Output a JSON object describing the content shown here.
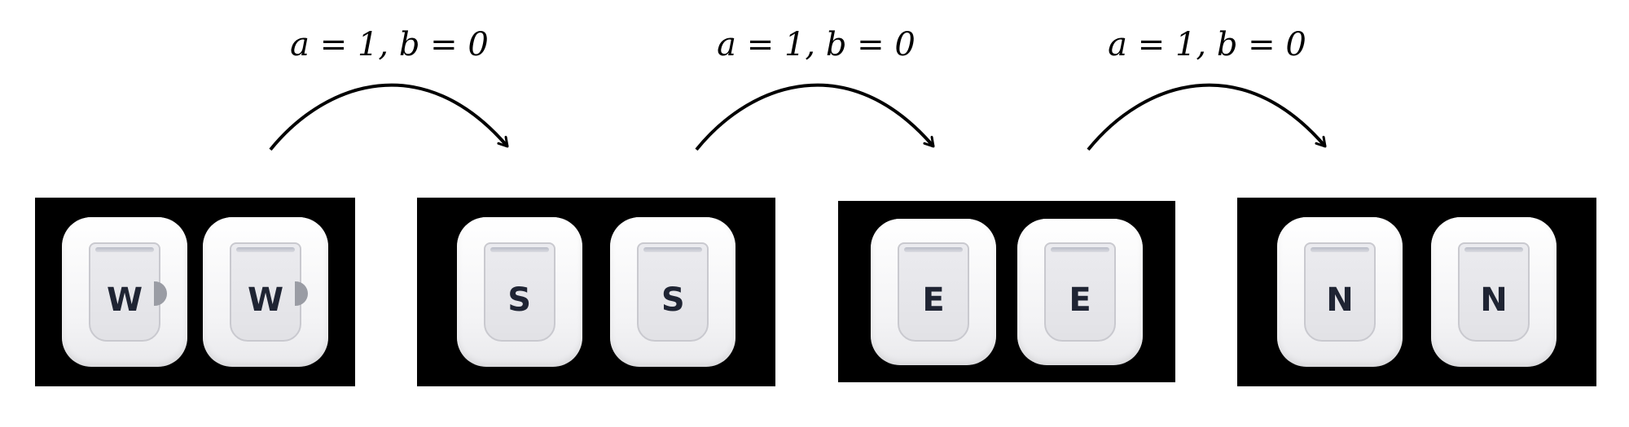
{
  "transitions": [
    {
      "label": "a = 1, b = 0"
    },
    {
      "label": "a = 1, b = 0"
    },
    {
      "label": "a = 1, b = 0"
    }
  ],
  "states": [
    {
      "tiles": [
        {
          "glyph": "W",
          "marker": "half-circle-marker"
        },
        {
          "glyph": "W",
          "marker": "half-circle-marker"
        }
      ]
    },
    {
      "tiles": [
        {
          "glyph": "S"
        },
        {
          "glyph": "S"
        }
      ]
    },
    {
      "tiles": [
        {
          "glyph": "E"
        },
        {
          "glyph": "E"
        }
      ]
    },
    {
      "tiles": [
        {
          "glyph": "N"
        },
        {
          "glyph": "N"
        }
      ]
    }
  ],
  "colors": {
    "panel": "#000000",
    "tile": "#f3f3f5",
    "glyph": "#1f2433",
    "arrow": "#000000"
  }
}
